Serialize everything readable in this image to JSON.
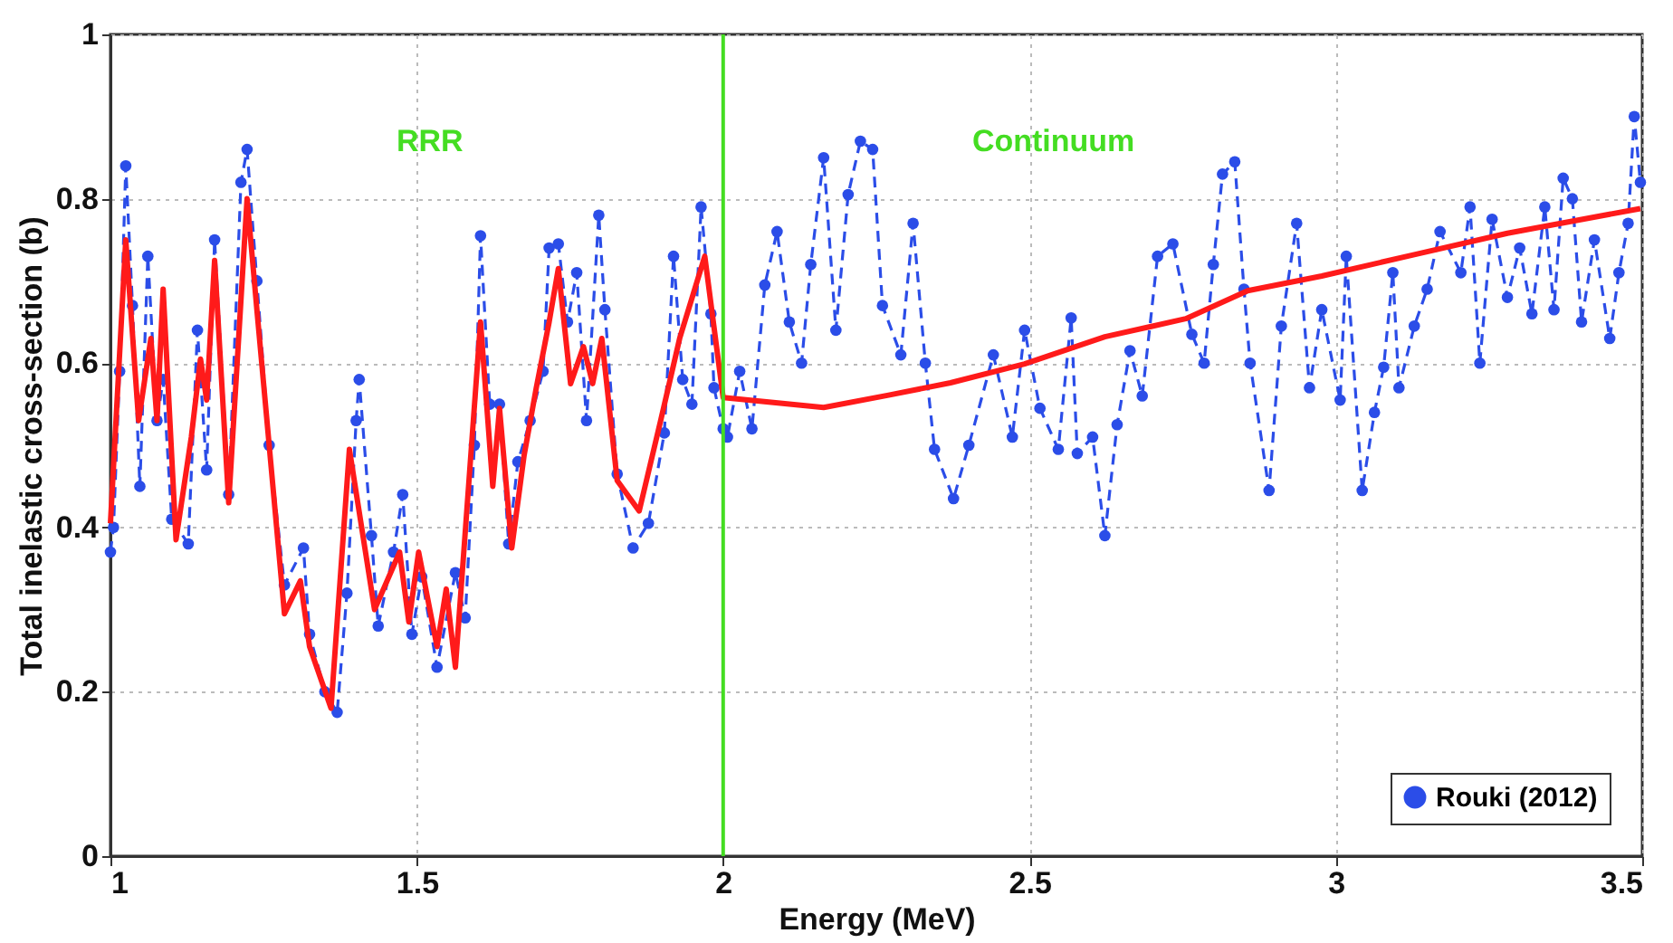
{
  "chart_data": {
    "type": "line",
    "xlabel": "Energy (MeV)",
    "ylabel": "Total inelastic cross-section (b)",
    "xlim": [
      1,
      3.5
    ],
    "xticks": [
      1,
      1.5,
      2,
      2.5,
      3,
      3.5
    ],
    "ylim": [
      0,
      1
    ],
    "yticks": [
      0,
      0.2,
      0.4,
      0.6,
      0.8,
      1
    ],
    "grid": true,
    "legend": "bottom right",
    "series": [
      {
        "name": "Rouki (2012)",
        "color": "#2b4de8",
        "marker": "circle",
        "line_style": "dashed",
        "x": [
          1.0,
          1.005,
          1.015,
          1.025,
          1.036,
          1.048,
          1.061,
          1.076,
          1.086,
          1.1,
          1.127,
          1.142,
          1.157,
          1.17,
          1.193,
          1.213,
          1.223,
          1.239,
          1.259,
          1.284,
          1.315,
          1.325,
          1.35,
          1.37,
          1.386,
          1.401,
          1.406,
          1.426,
          1.437,
          1.462,
          1.477,
          1.492,
          1.508,
          1.533,
          1.563,
          1.579,
          1.594,
          1.604,
          1.619,
          1.635,
          1.65,
          1.665,
          1.685,
          1.706,
          1.716,
          1.731,
          1.746,
          1.761,
          1.777,
          1.797,
          1.807,
          1.827,
          1.853,
          1.878,
          1.904,
          1.919,
          1.934,
          1.949,
          1.964,
          1.98,
          1.985,
          2.0,
          2.007,
          2.027,
          2.047,
          2.068,
          2.088,
          2.108,
          2.128,
          2.143,
          2.164,
          2.184,
          2.204,
          2.224,
          2.244,
          2.26,
          2.29,
          2.31,
          2.33,
          2.345,
          2.376,
          2.401,
          2.441,
          2.472,
          2.492,
          2.517,
          2.547,
          2.568,
          2.578,
          2.603,
          2.623,
          2.643,
          2.664,
          2.684,
          2.709,
          2.734,
          2.765,
          2.785,
          2.8,
          2.815,
          2.835,
          2.85,
          2.86,
          2.891,
          2.911,
          2.936,
          2.957,
          2.977,
          3.007,
          3.017,
          3.043,
          3.063,
          3.078,
          3.093,
          3.103,
          3.128,
          3.149,
          3.17,
          3.204,
          3.219,
          3.235,
          3.255,
          3.28,
          3.3,
          3.32,
          3.341,
          3.356,
          3.371,
          3.386,
          3.401,
          3.422,
          3.447,
          3.462,
          3.477,
          3.487,
          3.497
        ],
        "values": [
          0.37,
          0.4,
          0.59,
          0.84,
          0.67,
          0.45,
          0.73,
          0.53,
          0.58,
          0.41,
          0.38,
          0.64,
          0.47,
          0.75,
          0.44,
          0.82,
          0.86,
          0.7,
          0.5,
          0.33,
          0.375,
          0.27,
          0.2,
          0.175,
          0.32,
          0.53,
          0.58,
          0.39,
          0.28,
          0.37,
          0.44,
          0.27,
          0.34,
          0.23,
          0.345,
          0.29,
          0.5,
          0.755,
          0.55,
          0.55,
          0.38,
          0.48,
          0.53,
          0.59,
          0.74,
          0.745,
          0.65,
          0.71,
          0.53,
          0.78,
          0.665,
          0.465,
          0.375,
          0.405,
          0.515,
          0.73,
          0.58,
          0.55,
          0.79,
          0.66,
          0.57,
          0.52,
          0.51,
          0.59,
          0.52,
          0.695,
          0.76,
          0.65,
          0.6,
          0.72,
          0.85,
          0.64,
          0.805,
          0.87,
          0.86,
          0.67,
          0.61,
          0.77,
          0.6,
          0.495,
          0.435,
          0.5,
          0.61,
          0.51,
          0.64,
          0.545,
          0.495,
          0.655,
          0.49,
          0.51,
          0.39,
          0.525,
          0.615,
          0.56,
          0.73,
          0.745,
          0.635,
          0.6,
          0.72,
          0.83,
          0.845,
          0.69,
          0.6,
          0.445,
          0.645,
          0.77,
          0.57,
          0.665,
          0.555,
          0.73,
          0.445,
          0.54,
          0.595,
          0.71,
          0.57,
          0.645,
          0.69,
          0.76,
          0.71,
          0.79,
          0.6,
          0.775,
          0.68,
          0.74,
          0.66,
          0.79,
          0.665,
          0.825,
          0.8,
          0.65,
          0.75,
          0.63,
          0.71,
          0.77,
          0.9,
          0.82
        ]
      },
      {
        "color": "#ff1a1a",
        "marker": "none",
        "line_style": "solid",
        "x": [
          1.0,
          1.025,
          1.046,
          1.066,
          1.076,
          1.086,
          1.107,
          1.132,
          1.147,
          1.157,
          1.17,
          1.193,
          1.223,
          1.239,
          1.284,
          1.31,
          1.325,
          1.36,
          1.39,
          1.431,
          1.472,
          1.487,
          1.503,
          1.533,
          1.548,
          1.563,
          1.604,
          1.624,
          1.635,
          1.655,
          1.675,
          1.695,
          1.716,
          1.731,
          1.751,
          1.772,
          1.787,
          1.802,
          1.827,
          1.863,
          1.898,
          1.929,
          1.97,
          2.0,
          2.164,
          2.27,
          2.371,
          2.492,
          2.623,
          2.755,
          2.856,
          2.977,
          3.128,
          3.28,
          3.497
        ],
        "values": [
          0.405,
          0.75,
          0.53,
          0.63,
          0.53,
          0.69,
          0.385,
          0.51,
          0.605,
          0.555,
          0.725,
          0.43,
          0.8,
          0.665,
          0.295,
          0.335,
          0.255,
          0.18,
          0.495,
          0.3,
          0.37,
          0.285,
          0.37,
          0.255,
          0.325,
          0.23,
          0.65,
          0.45,
          0.545,
          0.375,
          0.487,
          0.57,
          0.65,
          0.715,
          0.575,
          0.62,
          0.575,
          0.63,
          0.457,
          0.42,
          0.53,
          0.63,
          0.73,
          0.558,
          0.546,
          0.561,
          0.576,
          0.599,
          0.632,
          0.654,
          0.688,
          0.706,
          0.732,
          0.758,
          0.788
        ]
      }
    ],
    "ref_lines": [
      {
        "axis": "x",
        "value": 2,
        "color": "#44dd22"
      }
    ],
    "annotations": [
      "RRR",
      "Continuum"
    ]
  }
}
